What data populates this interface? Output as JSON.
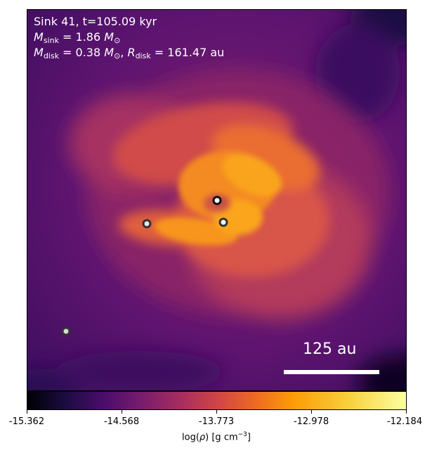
{
  "annotation": {
    "line1": "Sink 41, t=105.09 kyr",
    "sink_mass_symbol": "M",
    "sink_mass_sub": "sink",
    "sink_mass_value": " = 1.86 ",
    "disk_mass_symbol": "M",
    "disk_mass_sub": "disk",
    "disk_mass_value": " = 0.38 ",
    "disk_radius_symbol": "R",
    "disk_radius_sub": "disk",
    "disk_radius_value": " = 161.47 au",
    "solar_symbol": "M",
    "solar_sub": "⊙"
  },
  "scalebar": {
    "label": "125 au"
  },
  "colorbar": {
    "ticks": [
      "-15.362",
      "-14.568",
      "-13.773",
      "-12.978",
      "-12.184"
    ],
    "label_prefix": "log(",
    "label_rho": "ρ",
    "label_mid": ") [g cm",
    "label_exp": "−3",
    "label_suffix": "]",
    "colormap": "inferno"
  },
  "sinks": [
    {
      "name": "primary-sink",
      "fill": "#ffffff",
      "stroke": "#111111"
    },
    {
      "name": "companion-sink-right",
      "fill": "#ffffff",
      "stroke": "#333333"
    },
    {
      "name": "companion-sink-left",
      "fill": "#e8e8e8",
      "stroke": "#333333"
    },
    {
      "name": "distant-sink",
      "fill": "#d9d9d9",
      "stroke": "#333333"
    }
  ]
}
